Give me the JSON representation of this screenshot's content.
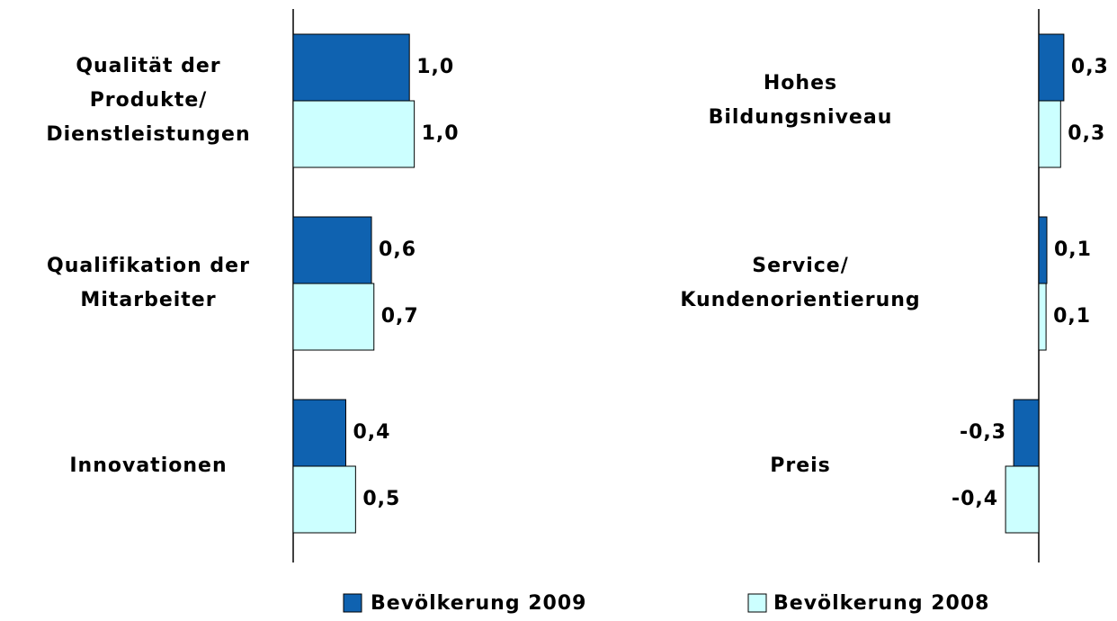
{
  "chart_data": [
    {
      "type": "hbar",
      "categories": [
        [
          "Qualität der",
          "Produkte/",
          "Dienstleistungen"
        ],
        [
          "Qualifikation der",
          "Mitarbeiter"
        ],
        [
          "Innovationen"
        ]
      ],
      "xlim": [
        0,
        1.5
      ],
      "series": [
        {
          "name": "Bevölkerung 2009",
          "color": "#0f62b0",
          "values": [
            0.95,
            0.64,
            0.43
          ],
          "value_labels": [
            "1,0",
            "0,6",
            "0,4"
          ]
        },
        {
          "name": "Bevölkerung 2008",
          "color": "#ccffff",
          "values": [
            0.99,
            0.66,
            0.51
          ],
          "value_labels": [
            "1,0",
            "0,7",
            "0,5"
          ]
        }
      ]
    },
    {
      "type": "hbar",
      "categories": [
        [
          "Hohes",
          "Bildungsniveau"
        ],
        [
          "Service/",
          "Kundenorientierung"
        ],
        [
          "Preis"
        ]
      ],
      "xlim": [
        -0.5,
        0.5
      ],
      "series": [
        {
          "color": "#0f62b0",
          "values": [
            0.31,
            0.1,
            -0.31
          ],
          "value_labels": [
            "0,3",
            "0,1",
            "-0,3"
          ]
        },
        {
          "color": "#ccffff",
          "values": [
            0.27,
            0.09,
            -0.41
          ],
          "value_labels": [
            "0,3",
            "0,1",
            "-0,4"
          ]
        }
      ]
    }
  ]
}
